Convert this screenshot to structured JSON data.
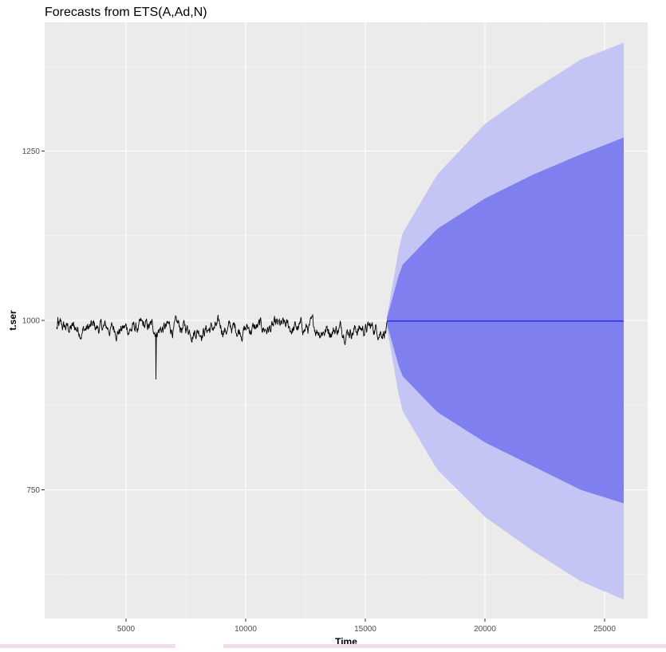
{
  "chart_data": {
    "type": "line",
    "title": "Forecasts from ETS(A,Ad,N)",
    "xlabel": "Time",
    "ylabel": "t.ser",
    "xlim": [
      1600,
      26800
    ],
    "ylim": [
      560,
      1440
    ],
    "x_ticks": [
      5000,
      10000,
      15000,
      20000,
      25000
    ],
    "x_tick_labels": [
      "5000",
      "10000",
      "15000",
      "20000",
      "25000"
    ],
    "y_ticks": [
      750,
      1000,
      1250
    ],
    "y_tick_labels": [
      "750",
      "1000",
      "1250"
    ],
    "grid": true,
    "legend": "none",
    "series": [
      {
        "role": "observed",
        "color": "#000000",
        "x_start": 2100,
        "x_end": 15900,
        "mean": 988,
        "typical_range": [
          955,
          1012
        ],
        "spikes": [
          {
            "x": 6250,
            "y": 913
          },
          {
            "x": 2150,
            "y": 1005
          }
        ]
      },
      {
        "role": "point-forecast",
        "color": "#0000ff",
        "x": [
          15900,
          25800
        ],
        "y": [
          999,
          999
        ]
      },
      {
        "role": "80-interval",
        "color": "#7f7fef",
        "x": [
          15900,
          16500,
          18000,
          20000,
          22000,
          24000,
          25800
        ],
        "lower": [
          995,
          920,
          865,
          820,
          785,
          750,
          730
        ],
        "upper": [
          1003,
          1080,
          1135,
          1180,
          1215,
          1245,
          1270
        ]
      },
      {
        "role": "95-interval",
        "color": "#c4c4f5",
        "x": [
          15900,
          16500,
          18000,
          20000,
          22000,
          24000,
          25800
        ],
        "lower": [
          990,
          870,
          780,
          710,
          660,
          615,
          588
        ],
        "upper": [
          1005,
          1125,
          1215,
          1290,
          1340,
          1385,
          1410
        ]
      }
    ]
  }
}
